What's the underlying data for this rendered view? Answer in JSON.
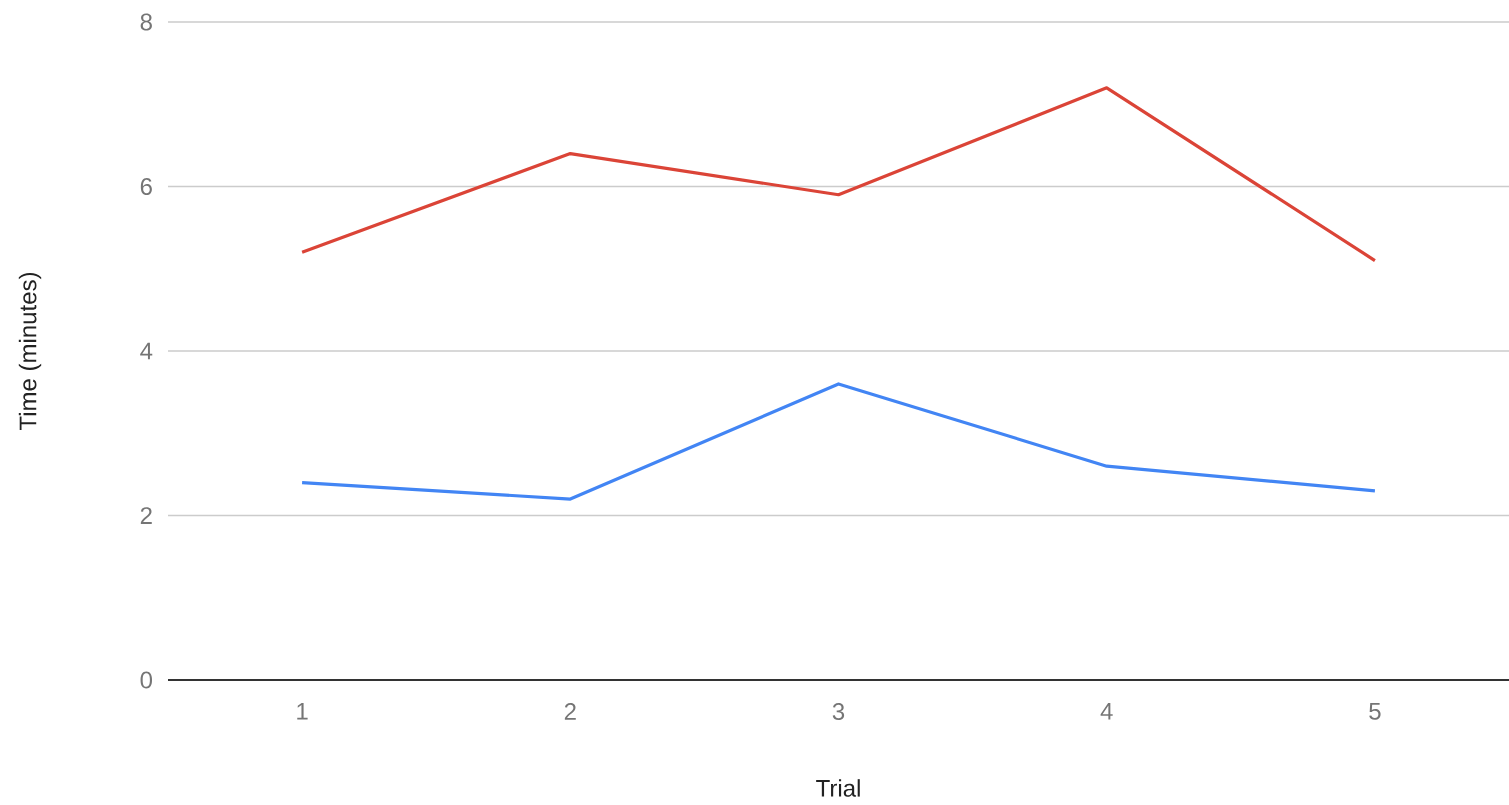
{
  "chart_data": {
    "type": "line",
    "xlabel": "Trial",
    "ylabel": "Time (minutes)",
    "categories": [
      "1",
      "2",
      "3",
      "4",
      "5"
    ],
    "series": [
      {
        "color": "#db4437",
        "values": [
          5.2,
          6.4,
          5.9,
          7.2,
          5.1
        ]
      },
      {
        "color": "#4285f4",
        "values": [
          2.4,
          2.2,
          3.6,
          2.6,
          2.3
        ]
      }
    ],
    "ylim": [
      0,
      8
    ],
    "yticks": [
      0,
      2,
      4,
      6,
      8
    ],
    "grid": "y"
  }
}
